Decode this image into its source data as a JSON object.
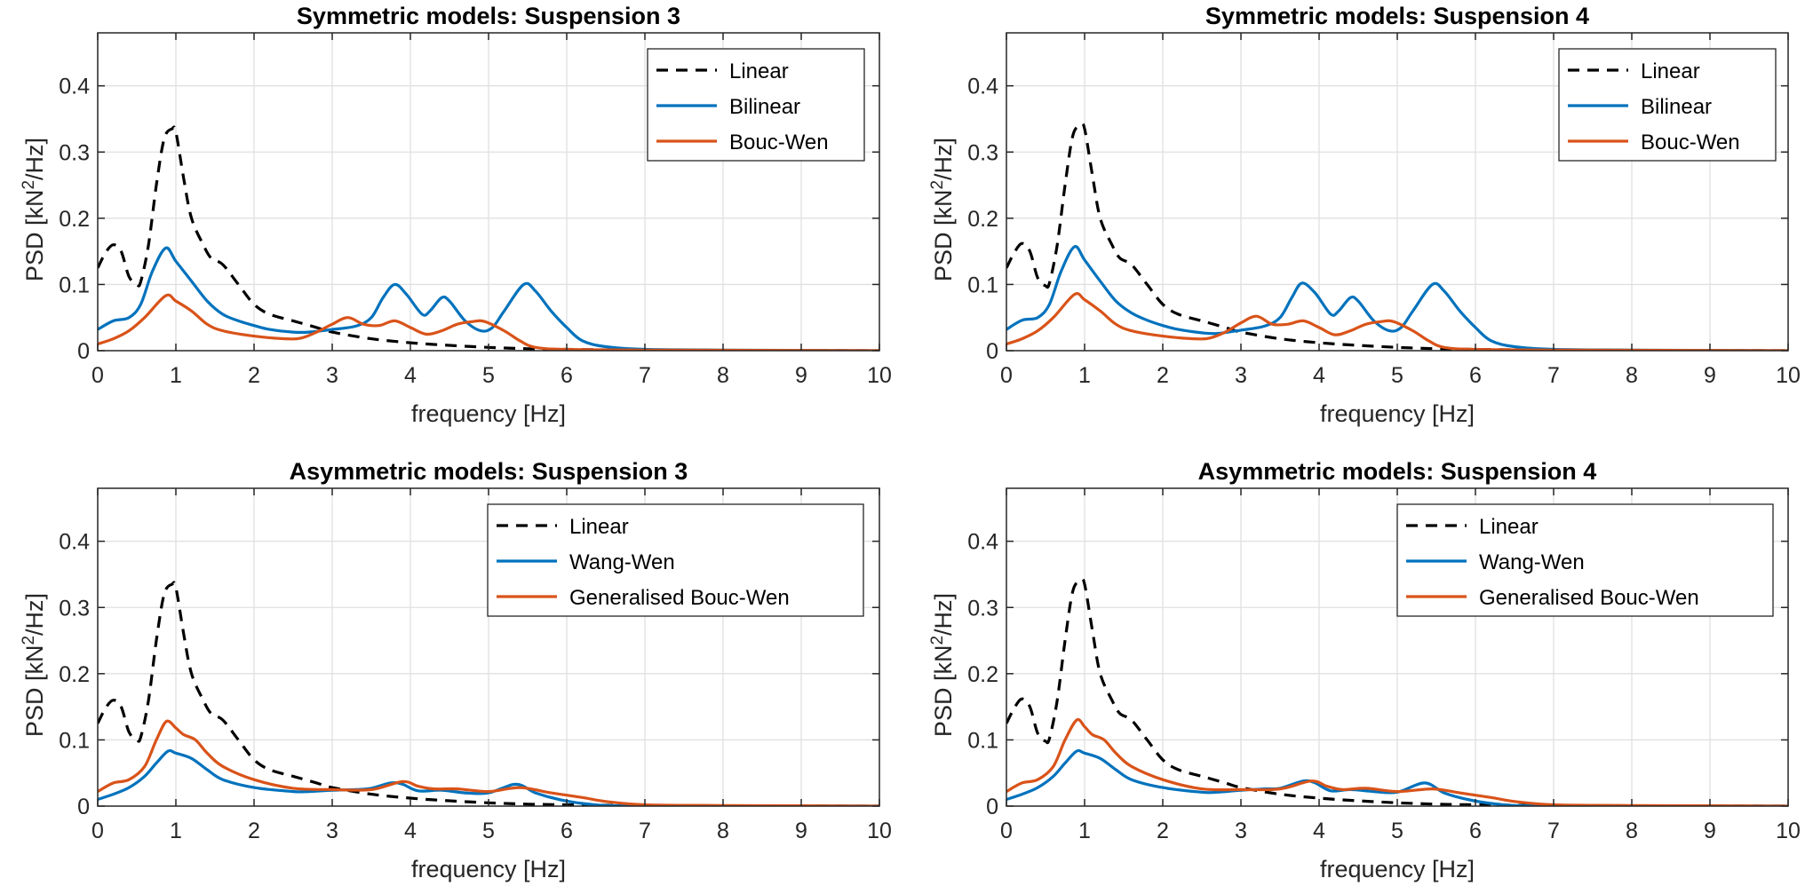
{
  "colors": {
    "linear": "#000000",
    "blue": "#0072BD",
    "orange": "#D95319"
  },
  "chart_data": [
    {
      "type": "line",
      "title": "Symmetric models: Suspension 3",
      "xlabel": "frequency [Hz]",
      "ylabel": "PSD [kN^2/Hz]",
      "xlim": [
        0,
        10
      ],
      "ylim": [
        0,
        0.48
      ],
      "xticks": [
        0,
        1,
        2,
        3,
        4,
        5,
        6,
        7,
        8,
        9,
        10
      ],
      "yticks": [
        0,
        0.1,
        0.2,
        0.3,
        0.4
      ],
      "grid": true,
      "legend_position": "top-right",
      "series": [
        {
          "name": "Linear",
          "style": "dashed",
          "color": "#000000",
          "x": [
            0,
            0.1,
            0.2,
            0.3,
            0.4,
            0.5,
            0.55,
            0.65,
            0.75,
            0.85,
            0.95,
            1.0,
            1.1,
            1.2,
            1.35,
            1.45,
            1.6,
            1.8,
            2.0,
            2.2,
            2.5,
            2.8,
            3.0,
            3.5,
            4.0,
            4.5,
            5.0,
            5.5,
            6.0,
            7.0,
            10
          ],
          "y": [
            0.125,
            0.148,
            0.16,
            0.15,
            0.112,
            0.1,
            0.104,
            0.16,
            0.25,
            0.32,
            0.335,
            0.33,
            0.26,
            0.2,
            0.16,
            0.14,
            0.13,
            0.1,
            0.07,
            0.055,
            0.045,
            0.035,
            0.028,
            0.018,
            0.012,
            0.008,
            0.005,
            0.003,
            0.002,
            0.001,
            0
          ]
        },
        {
          "name": "Bilinear",
          "style": "solid",
          "color": "#0072BD",
          "x": [
            0,
            0.2,
            0.4,
            0.55,
            0.7,
            0.87,
            1.0,
            1.2,
            1.4,
            1.6,
            1.8,
            2.0,
            2.2,
            2.5,
            2.7,
            3.0,
            3.3,
            3.5,
            3.65,
            3.8,
            3.95,
            4.15,
            4.25,
            4.4,
            4.5,
            4.7,
            4.9,
            5.05,
            5.2,
            5.45,
            5.6,
            5.8,
            6.0,
            6.2,
            6.5,
            7.0,
            8.0,
            10
          ],
          "y": [
            0.032,
            0.045,
            0.05,
            0.07,
            0.12,
            0.155,
            0.135,
            0.105,
            0.075,
            0.055,
            0.045,
            0.038,
            0.032,
            0.028,
            0.028,
            0.032,
            0.037,
            0.05,
            0.08,
            0.1,
            0.085,
            0.055,
            0.06,
            0.08,
            0.075,
            0.045,
            0.03,
            0.035,
            0.06,
            0.1,
            0.09,
            0.06,
            0.035,
            0.015,
            0.006,
            0.002,
            0.001,
            0
          ]
        },
        {
          "name": "Bouc-Wen",
          "style": "solid",
          "color": "#D95319",
          "x": [
            0,
            0.2,
            0.4,
            0.6,
            0.87,
            1.0,
            1.2,
            1.4,
            1.6,
            2.0,
            2.4,
            2.6,
            2.8,
            3.0,
            3.2,
            3.4,
            3.6,
            3.8,
            4.0,
            4.2,
            4.4,
            4.6,
            4.8,
            4.95,
            5.2,
            5.4,
            5.6,
            6.0,
            7.0,
            10
          ],
          "y": [
            0.01,
            0.018,
            0.03,
            0.05,
            0.083,
            0.075,
            0.06,
            0.04,
            0.03,
            0.022,
            0.018,
            0.019,
            0.028,
            0.04,
            0.05,
            0.04,
            0.038,
            0.045,
            0.035,
            0.025,
            0.03,
            0.04,
            0.044,
            0.044,
            0.03,
            0.015,
            0.005,
            0.002,
            0.001,
            0
          ]
        }
      ]
    },
    {
      "type": "line",
      "title": "Symmetric models: Suspension 4",
      "xlabel": "frequency [Hz]",
      "ylabel": "PSD [kN^2/Hz]",
      "xlim": [
        0,
        10
      ],
      "ylim": [
        0,
        0.48
      ],
      "xticks": [
        0,
        1,
        2,
        3,
        4,
        5,
        6,
        7,
        8,
        9,
        10
      ],
      "yticks": [
        0,
        0.1,
        0.2,
        0.3,
        0.4
      ],
      "grid": true,
      "legend_position": "top-right",
      "series": [
        {
          "name": "Linear",
          "style": "dashed",
          "color": "#000000",
          "x": [
            0,
            0.1,
            0.2,
            0.3,
            0.4,
            0.5,
            0.55,
            0.65,
            0.75,
            0.85,
            0.95,
            1.0,
            1.1,
            1.2,
            1.35,
            1.45,
            1.6,
            1.8,
            2.0,
            2.2,
            2.5,
            2.8,
            3.0,
            3.5,
            4.0,
            4.5,
            5.0,
            5.5,
            6.0,
            7.0,
            10
          ],
          "y": [
            0.125,
            0.148,
            0.162,
            0.15,
            0.11,
            0.098,
            0.102,
            0.16,
            0.25,
            0.325,
            0.34,
            0.335,
            0.265,
            0.2,
            0.16,
            0.14,
            0.13,
            0.1,
            0.07,
            0.055,
            0.045,
            0.035,
            0.028,
            0.018,
            0.012,
            0.008,
            0.005,
            0.003,
            0.002,
            0.001,
            0
          ]
        },
        {
          "name": "Bilinear",
          "style": "solid",
          "color": "#0072BD",
          "x": [
            0,
            0.2,
            0.4,
            0.55,
            0.7,
            0.87,
            1.0,
            1.2,
            1.4,
            1.6,
            1.8,
            2.0,
            2.2,
            2.5,
            2.7,
            3.0,
            3.3,
            3.5,
            3.65,
            3.78,
            3.95,
            4.15,
            4.25,
            4.4,
            4.5,
            4.7,
            4.9,
            5.05,
            5.2,
            5.45,
            5.6,
            5.8,
            6.0,
            6.2,
            6.5,
            7.0,
            8.0,
            10
          ],
          "y": [
            0.032,
            0.046,
            0.05,
            0.07,
            0.12,
            0.157,
            0.137,
            0.105,
            0.075,
            0.057,
            0.046,
            0.038,
            0.032,
            0.027,
            0.026,
            0.031,
            0.037,
            0.05,
            0.08,
            0.102,
            0.087,
            0.055,
            0.06,
            0.08,
            0.075,
            0.045,
            0.03,
            0.035,
            0.06,
            0.1,
            0.09,
            0.06,
            0.035,
            0.015,
            0.006,
            0.002,
            0.001,
            0
          ]
        },
        {
          "name": "Bouc-Wen",
          "style": "solid",
          "color": "#D95319",
          "x": [
            0,
            0.2,
            0.4,
            0.6,
            0.87,
            1.0,
            1.2,
            1.4,
            1.6,
            2.0,
            2.4,
            2.6,
            2.8,
            3.0,
            3.2,
            3.4,
            3.6,
            3.8,
            4.0,
            4.2,
            4.4,
            4.6,
            4.8,
            4.95,
            5.2,
            5.4,
            5.6,
            6.0,
            7.0,
            10
          ],
          "y": [
            0.01,
            0.018,
            0.03,
            0.05,
            0.085,
            0.077,
            0.06,
            0.04,
            0.03,
            0.022,
            0.018,
            0.019,
            0.028,
            0.042,
            0.052,
            0.04,
            0.04,
            0.045,
            0.035,
            0.024,
            0.03,
            0.04,
            0.044,
            0.044,
            0.03,
            0.015,
            0.005,
            0.002,
            0.001,
            0
          ]
        }
      ]
    },
    {
      "type": "line",
      "title": "Asymmetric models: Suspension 3",
      "xlabel": "frequency [Hz]",
      "ylabel": "PSD [kN^2/Hz]",
      "xlim": [
        0,
        10
      ],
      "ylim": [
        0,
        0.48
      ],
      "xticks": [
        0,
        1,
        2,
        3,
        4,
        5,
        6,
        7,
        8,
        9,
        10
      ],
      "yticks": [
        0,
        0.1,
        0.2,
        0.3,
        0.4
      ],
      "grid": true,
      "legend_position": "top-right",
      "series": [
        {
          "name": "Linear",
          "style": "dashed",
          "color": "#000000",
          "x": [
            0,
            0.1,
            0.2,
            0.3,
            0.4,
            0.5,
            0.55,
            0.65,
            0.75,
            0.85,
            0.95,
            1.0,
            1.1,
            1.2,
            1.35,
            1.45,
            1.6,
            1.8,
            2.0,
            2.2,
            2.5,
            2.8,
            3.0,
            3.5,
            4.0,
            4.5,
            5.0,
            5.5,
            6.0,
            7.0,
            10
          ],
          "y": [
            0.125,
            0.148,
            0.16,
            0.15,
            0.112,
            0.1,
            0.104,
            0.16,
            0.25,
            0.32,
            0.335,
            0.33,
            0.26,
            0.2,
            0.16,
            0.14,
            0.13,
            0.1,
            0.07,
            0.055,
            0.045,
            0.035,
            0.028,
            0.018,
            0.012,
            0.008,
            0.005,
            0.003,
            0.002,
            0.001,
            0
          ]
        },
        {
          "name": "Wang-Wen",
          "style": "solid",
          "color": "#0072BD",
          "x": [
            0,
            0.2,
            0.4,
            0.6,
            0.75,
            0.9,
            1.0,
            1.2,
            1.4,
            1.6,
            2.0,
            2.5,
            2.7,
            3.0,
            3.3,
            3.5,
            3.75,
            3.9,
            4.1,
            4.4,
            4.7,
            5.0,
            5.35,
            5.6,
            5.9,
            6.2,
            6.5,
            7.0,
            10
          ],
          "y": [
            0.01,
            0.018,
            0.028,
            0.045,
            0.065,
            0.083,
            0.08,
            0.072,
            0.055,
            0.04,
            0.028,
            0.022,
            0.022,
            0.024,
            0.025,
            0.027,
            0.035,
            0.033,
            0.023,
            0.024,
            0.02,
            0.02,
            0.033,
            0.02,
            0.01,
            0.004,
            0.001,
            0.0005,
            0
          ]
        },
        {
          "name": "Generalised Bouc-Wen",
          "style": "solid",
          "color": "#D95319",
          "x": [
            0,
            0.2,
            0.4,
            0.6,
            0.75,
            0.88,
            1.0,
            1.1,
            1.25,
            1.4,
            1.6,
            2.0,
            2.5,
            3.0,
            3.5,
            3.9,
            4.1,
            4.3,
            4.6,
            5.0,
            5.4,
            5.8,
            6.2,
            6.5,
            7.0,
            8.0,
            10
          ],
          "y": [
            0.022,
            0.035,
            0.04,
            0.06,
            0.1,
            0.128,
            0.118,
            0.108,
            0.1,
            0.08,
            0.06,
            0.04,
            0.027,
            0.025,
            0.025,
            0.037,
            0.03,
            0.026,
            0.026,
            0.022,
            0.028,
            0.02,
            0.013,
            0.007,
            0.002,
            0.001,
            0
          ]
        }
      ]
    },
    {
      "type": "line",
      "title": "Asymmetric models: Suspension 4",
      "xlabel": "frequency [Hz]",
      "ylabel": "PSD [kN^2/Hz]",
      "xlim": [
        0,
        10
      ],
      "ylim": [
        0,
        0.48
      ],
      "xticks": [
        0,
        1,
        2,
        3,
        4,
        5,
        6,
        7,
        8,
        9,
        10
      ],
      "yticks": [
        0,
        0.1,
        0.2,
        0.3,
        0.4
      ],
      "grid": true,
      "legend_position": "top-right",
      "series": [
        {
          "name": "Linear",
          "style": "dashed",
          "color": "#000000",
          "x": [
            0,
            0.1,
            0.2,
            0.3,
            0.4,
            0.5,
            0.55,
            0.65,
            0.75,
            0.85,
            0.95,
            1.0,
            1.1,
            1.2,
            1.35,
            1.45,
            1.6,
            1.8,
            2.0,
            2.2,
            2.5,
            2.8,
            3.0,
            3.5,
            4.0,
            4.5,
            5.0,
            5.5,
            6.0,
            7.0,
            10
          ],
          "y": [
            0.125,
            0.148,
            0.162,
            0.15,
            0.11,
            0.098,
            0.102,
            0.16,
            0.25,
            0.325,
            0.34,
            0.335,
            0.265,
            0.2,
            0.16,
            0.14,
            0.13,
            0.1,
            0.07,
            0.055,
            0.045,
            0.035,
            0.028,
            0.018,
            0.012,
            0.008,
            0.005,
            0.003,
            0.002,
            0.001,
            0
          ]
        },
        {
          "name": "Wang-Wen",
          "style": "solid",
          "color": "#0072BD",
          "x": [
            0,
            0.2,
            0.4,
            0.6,
            0.75,
            0.9,
            1.0,
            1.2,
            1.4,
            1.6,
            2.0,
            2.5,
            2.7,
            3.0,
            3.3,
            3.5,
            3.8,
            3.95,
            4.15,
            4.4,
            4.7,
            5.0,
            5.35,
            5.6,
            5.9,
            6.2,
            6.5,
            7.0,
            10
          ],
          "y": [
            0.01,
            0.018,
            0.028,
            0.045,
            0.065,
            0.083,
            0.08,
            0.072,
            0.055,
            0.04,
            0.028,
            0.021,
            0.021,
            0.024,
            0.026,
            0.027,
            0.038,
            0.035,
            0.023,
            0.025,
            0.022,
            0.021,
            0.035,
            0.02,
            0.01,
            0.004,
            0.001,
            0.0005,
            0
          ]
        },
        {
          "name": "Generalised Bouc-Wen",
          "style": "solid",
          "color": "#D95319",
          "x": [
            0,
            0.2,
            0.4,
            0.6,
            0.75,
            0.9,
            1.0,
            1.1,
            1.25,
            1.4,
            1.6,
            2.0,
            2.5,
            3.0,
            3.5,
            3.9,
            4.1,
            4.3,
            4.6,
            5.0,
            5.45,
            5.8,
            6.2,
            6.5,
            7.0,
            8.0,
            10
          ],
          "y": [
            0.022,
            0.035,
            0.04,
            0.06,
            0.1,
            0.13,
            0.12,
            0.108,
            0.1,
            0.08,
            0.06,
            0.04,
            0.026,
            0.025,
            0.026,
            0.038,
            0.03,
            0.025,
            0.027,
            0.022,
            0.026,
            0.02,
            0.013,
            0.007,
            0.002,
            0.001,
            0
          ]
        }
      ]
    }
  ]
}
